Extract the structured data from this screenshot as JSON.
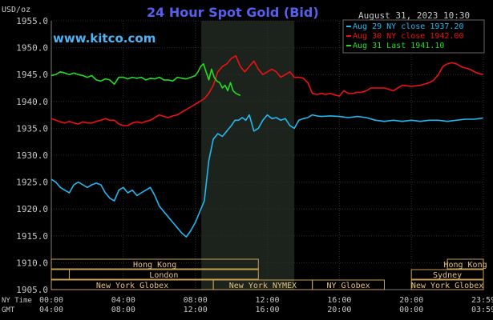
{
  "chart_data": {
    "type": "line",
    "title": "24 Hour Spot Gold (Bid)",
    "brand": "www.kitco.com",
    "ylabel": "USD/oz",
    "date_label": "August 31, 2023 10:30",
    "ylim": [
      1905,
      1955
    ],
    "yticks": [
      "1955.0",
      "1950.0",
      "1945.0",
      "1940.0",
      "1935.0",
      "1930.0",
      "1925.0",
      "1920.0",
      "1915.0",
      "1910.0",
      "1905.0"
    ],
    "x_ticks_ny": [
      "00:00",
      "04:00",
      "08:00",
      "12:00",
      "16:00",
      "20:00",
      "23:59"
    ],
    "x_ticks_gmt": [
      "04:00",
      "08:00",
      "12:00",
      "16:00",
      "20:00",
      "00:00",
      "03:59"
    ],
    "x_axis_labels": [
      "NY Time",
      "GMT"
    ],
    "grid": true,
    "legend_position": "top-right",
    "highlight_range_hours": [
      8.3333,
      13.5
    ],
    "series": [
      {
        "name": "Aug 29 NY close 1937.20",
        "color": "#22b8f0",
        "x": [
          0,
          0.25,
          0.5,
          0.75,
          1.0,
          1.25,
          1.5,
          1.75,
          2.0,
          2.25,
          2.5,
          2.75,
          3.0,
          3.25,
          3.5,
          3.75,
          4.0,
          4.25,
          4.5,
          4.75,
          5.0,
          5.25,
          5.5,
          5.75,
          6.0,
          6.25,
          6.5,
          6.75,
          7.0,
          7.25,
          7.5,
          7.75,
          8.0,
          8.25,
          8.5,
          8.75,
          9.0,
          9.25,
          9.5,
          9.75,
          10.0,
          10.2,
          10.4,
          10.6,
          10.8,
          11.0,
          11.25,
          11.5,
          11.75,
          12.0,
          12.25,
          12.5,
          12.75,
          13.0,
          13.25,
          13.5,
          13.75,
          14.0,
          14.25,
          14.5,
          14.75,
          15.0,
          15.5,
          16.0,
          16.5,
          17.0,
          17.5,
          18.0,
          18.5,
          19.0,
          19.5,
          20.0,
          20.5,
          21.0,
          21.5,
          22.0,
          22.5,
          23.0,
          23.5,
          23.98
        ],
        "values": [
          1925.5,
          1925.0,
          1924.0,
          1923.5,
          1923.0,
          1924.5,
          1925.0,
          1924.5,
          1924.0,
          1924.5,
          1924.8,
          1924.5,
          1923.0,
          1922.0,
          1921.5,
          1923.5,
          1924.0,
          1923.0,
          1923.5,
          1922.5,
          1923.0,
          1923.5,
          1924.0,
          1922.5,
          1920.5,
          1919.5,
          1918.5,
          1917.5,
          1916.5,
          1915.5,
          1914.8,
          1916.0,
          1917.5,
          1919.5,
          1921.5,
          1929.0,
          1933.0,
          1934.0,
          1933.5,
          1934.5,
          1935.5,
          1936.5,
          1936.5,
          1937.0,
          1936.5,
          1937.5,
          1934.5,
          1935.0,
          1936.5,
          1937.5,
          1936.8,
          1937.0,
          1936.5,
          1936.8,
          1935.5,
          1935.0,
          1936.5,
          1936.8,
          1937.0,
          1937.5,
          1937.3,
          1937.2,
          1937.3,
          1937.2,
          1937.0,
          1937.2,
          1937.0,
          1936.5,
          1936.3,
          1936.5,
          1936.3,
          1936.5,
          1936.3,
          1936.5,
          1936.5,
          1936.3,
          1936.5,
          1936.7,
          1936.7,
          1936.9
        ]
      },
      {
        "name": "Aug 30 NY close 1942.00",
        "color": "#ee1111",
        "x": [
          0,
          0.25,
          0.5,
          0.75,
          1.0,
          1.25,
          1.5,
          1.75,
          2.0,
          2.25,
          2.5,
          2.75,
          3.0,
          3.25,
          3.5,
          3.75,
          4.0,
          4.25,
          4.5,
          4.75,
          5.0,
          5.25,
          5.5,
          5.75,
          6.0,
          6.25,
          6.5,
          6.75,
          7.0,
          7.25,
          7.5,
          7.75,
          8.0,
          8.25,
          8.5,
          8.75,
          9.0,
          9.25,
          9.5,
          9.75,
          10.0,
          10.25,
          10.5,
          10.75,
          11.0,
          11.25,
          11.5,
          11.75,
          12.0,
          12.25,
          12.5,
          12.75,
          13.0,
          13.25,
          13.5,
          13.75,
          14.0,
          14.25,
          14.5,
          14.75,
          15.0,
          15.25,
          15.5,
          15.75,
          16.0,
          16.25,
          16.5,
          16.75,
          17.0,
          17.25,
          17.5,
          17.75,
          18.0,
          18.5,
          19.0,
          19.5,
          20.0,
          20.5,
          21.0,
          21.25,
          21.5,
          21.75,
          22.0,
          22.25,
          22.5,
          22.75,
          23.0,
          23.25,
          23.5,
          23.75,
          23.98
        ],
        "values": [
          1936.8,
          1936.5,
          1936.2,
          1936.0,
          1936.3,
          1936.0,
          1935.8,
          1936.2,
          1936.0,
          1936.0,
          1936.3,
          1936.5,
          1936.8,
          1936.5,
          1936.5,
          1935.8,
          1935.5,
          1935.5,
          1936.0,
          1936.2,
          1936.0,
          1936.3,
          1936.5,
          1937.0,
          1937.5,
          1937.2,
          1937.0,
          1937.3,
          1937.5,
          1938.0,
          1938.5,
          1939.0,
          1939.5,
          1940.0,
          1940.5,
          1941.5,
          1943.0,
          1945.5,
          1946.5,
          1947.0,
          1948.0,
          1948.5,
          1946.5,
          1945.5,
          1946.5,
          1947.5,
          1946.0,
          1945.0,
          1945.5,
          1946.0,
          1945.5,
          1944.5,
          1945.0,
          1945.5,
          1944.5,
          1944.5,
          1944.3,
          1943.5,
          1941.5,
          1941.3,
          1941.5,
          1941.3,
          1941.5,
          1941.2,
          1941.0,
          1942.0,
          1941.5,
          1941.5,
          1941.7,
          1941.7,
          1942.0,
          1942.5,
          1942.5,
          1942.5,
          1942.0,
          1943.0,
          1942.8,
          1943.0,
          1943.5,
          1944.0,
          1945.0,
          1946.5,
          1947.0,
          1947.2,
          1947.0,
          1946.5,
          1946.2,
          1946.0,
          1945.5,
          1945.2,
          1945.0
        ]
      },
      {
        "name": "Aug 31 Last 1941.10",
        "color": "#22dd22",
        "x": [
          0,
          0.25,
          0.5,
          0.75,
          1.0,
          1.25,
          1.5,
          1.75,
          2.0,
          2.25,
          2.5,
          2.75,
          3.0,
          3.25,
          3.5,
          3.75,
          4.0,
          4.25,
          4.5,
          4.75,
          5.0,
          5.25,
          5.5,
          5.75,
          6.0,
          6.25,
          6.5,
          6.75,
          7.0,
          7.25,
          7.5,
          7.75,
          8.0,
          8.15,
          8.3,
          8.45,
          8.6,
          8.75,
          8.9,
          9.05,
          9.2,
          9.35,
          9.5,
          9.65,
          9.8,
          9.95,
          10.1,
          10.25,
          10.5
        ],
        "values": [
          1944.8,
          1945.0,
          1945.5,
          1945.3,
          1945.0,
          1945.3,
          1945.0,
          1944.8,
          1944.5,
          1944.8,
          1944.0,
          1943.8,
          1944.2,
          1944.0,
          1943.2,
          1944.5,
          1944.5,
          1944.2,
          1944.5,
          1944.3,
          1944.5,
          1944.0,
          1944.3,
          1944.2,
          1944.5,
          1944.0,
          1944.0,
          1943.8,
          1944.5,
          1944.3,
          1944.2,
          1944.5,
          1944.8,
          1945.5,
          1946.5,
          1947.0,
          1945.5,
          1944.0,
          1946.0,
          1944.5,
          1943.8,
          1943.5,
          1942.5,
          1943.0,
          1942.0,
          1943.5,
          1942.0,
          1941.5,
          1941.1
        ]
      }
    ],
    "sessions": [
      {
        "label": "Hong Kong",
        "row": 0,
        "start": 0,
        "end": 11.5
      },
      {
        "label": "Hong Kong",
        "row": 0,
        "start": 22.0,
        "end": 24.0
      },
      {
        "label": "London",
        "row": 1,
        "start": 0,
        "end": 1.0
      },
      {
        "label": "London",
        "row": 1,
        "start": 1.0,
        "end": 11.5
      },
      {
        "label": "Sydney",
        "row": 1,
        "start": 20.0,
        "end": 24.0
      },
      {
        "label": "New York Globex",
        "row": 2,
        "start": 0,
        "end": 9.0
      },
      {
        "label": "New York NYMEX",
        "row": 2,
        "start": 9.0,
        "end": 14.5
      },
      {
        "label": "NY Globex",
        "row": 2,
        "start": 14.5,
        "end": 18.5
      },
      {
        "label": "New York Globex",
        "row": 2,
        "start": 20.0,
        "end": 24.0
      }
    ]
  }
}
